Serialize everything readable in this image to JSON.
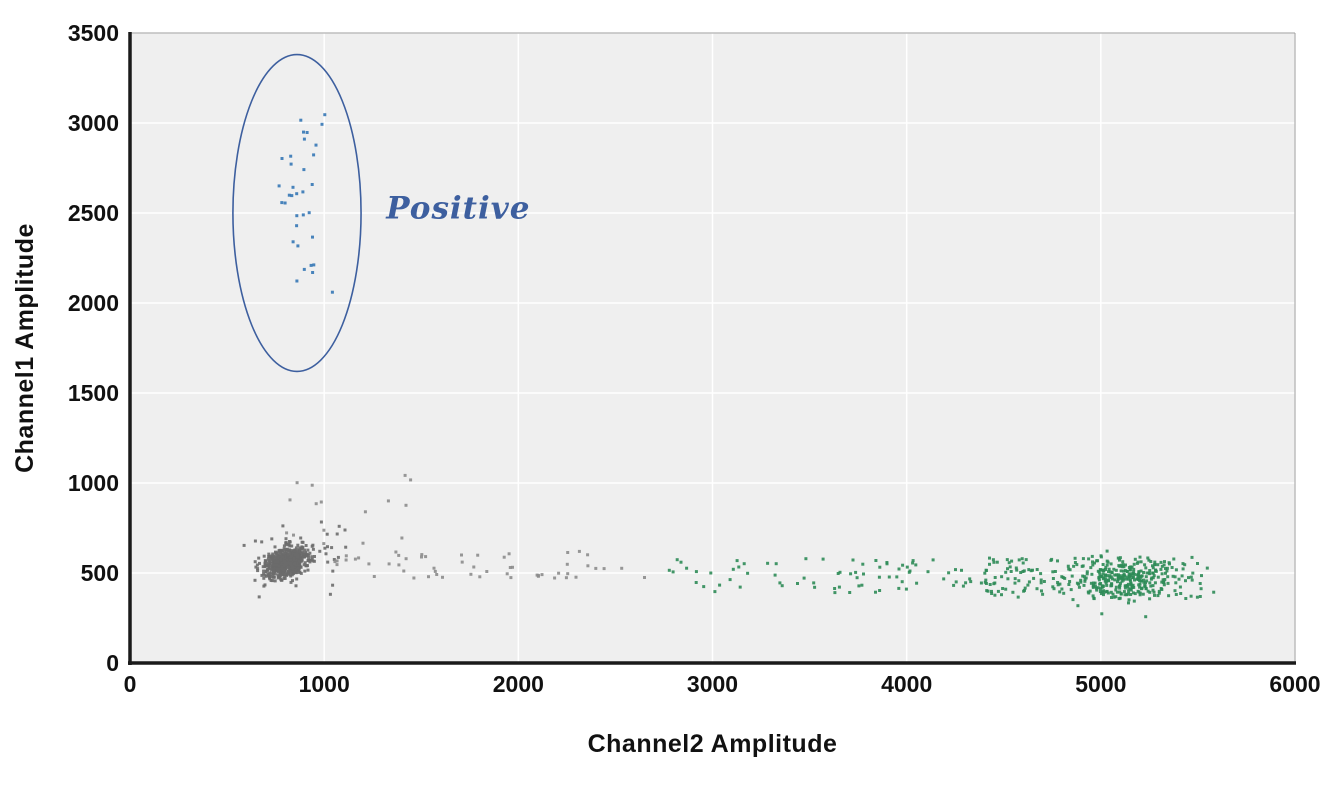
{
  "chart_data": {
    "type": "scatter",
    "title": "",
    "xlabel": "Channel2 Amplitude",
    "ylabel": "Channel1 Amplitude",
    "xlim": [
      0,
      6000
    ],
    "ylim": [
      0,
      3500
    ],
    "x_ticks": [
      0,
      1000,
      2000,
      3000,
      4000,
      5000,
      6000
    ],
    "y_ticks": [
      0,
      500,
      1000,
      1500,
      2000,
      2500,
      3000,
      3500
    ],
    "grid": true,
    "legend": "none",
    "point_size": 3,
    "colors": {
      "plot_background": "#efefef",
      "gridline": "#ffffff",
      "axis_line": "#1a1a1a",
      "frame_line": "#9e9e9e",
      "tick_text": "#111111",
      "positive_points": "#3577b5",
      "negative_points": "#6b6b6b",
      "negative_trail_points": "#8c8c8c",
      "green_points": "#2e8b57",
      "annotation": "#3d5f9f"
    },
    "annotation": {
      "label": "Positive",
      "label_x": 1320,
      "label_y": 2470,
      "ellipse": {
        "cx": 860,
        "cy": 2500,
        "rx": 330,
        "ry": 880
      }
    },
    "clusters": [
      {
        "name": "positive-droplets",
        "color_key": "positive_points",
        "type": "gauss",
        "count": 34,
        "cx": 880,
        "cy": 2580,
        "sx": 55,
        "sy": 350,
        "rho": 0,
        "y_clip": [
          1850,
          3120
        ]
      },
      {
        "name": "negative-core",
        "color_key": "negative_points",
        "type": "gauss",
        "count": 700,
        "cx": 805,
        "cy": 560,
        "sx": 52,
        "sy": 40,
        "rho": 0.35
      },
      {
        "name": "negative-halo",
        "color_key": "negative_points",
        "type": "gauss",
        "count": 70,
        "cx": 860,
        "cy": 580,
        "sx": 130,
        "sy": 80,
        "rho": 0.2
      },
      {
        "name": "negative-rain",
        "color_key": "negative_trail_points",
        "type": "uniform",
        "count": 16,
        "x_range": [
          800,
          1500
        ],
        "y_range": [
          640,
          1060
        ]
      },
      {
        "name": "negative-trail",
        "color_key": "negative_trail_points",
        "type": "uniform",
        "count": 55,
        "x_range": [
          1000,
          2750
        ],
        "y_range": [
          470,
          625
        ]
      },
      {
        "name": "green-sparse",
        "color_key": "green_points",
        "type": "uniform",
        "count": 90,
        "x_range": [
          2750,
          4650
        ],
        "y_range": [
          390,
          580
        ]
      },
      {
        "name": "green-mid",
        "color_key": "green_points",
        "type": "uniform",
        "count": 150,
        "x_range": [
          4400,
          5520
        ],
        "y_range": [
          350,
          590
        ]
      },
      {
        "name": "green-dense",
        "color_key": "green_points",
        "type": "gauss",
        "count": 280,
        "cx": 5120,
        "cy": 470,
        "sx": 140,
        "sy": 60,
        "rho": 0
      }
    ]
  }
}
